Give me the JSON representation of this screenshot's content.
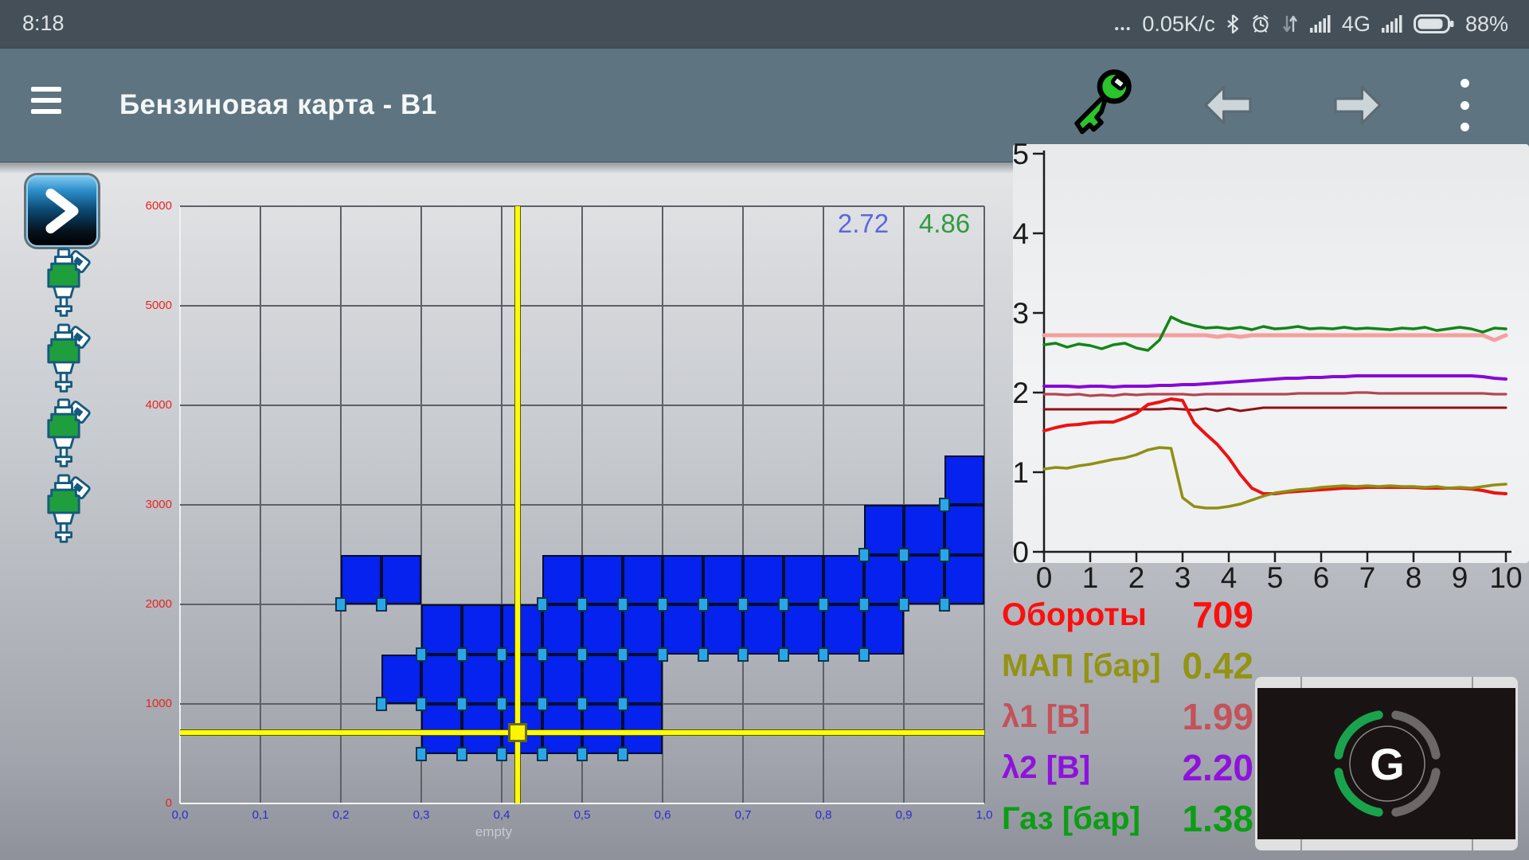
{
  "status_bar": {
    "time": "8:18",
    "ellipsis": "•••",
    "data_rate": "0.05K/c",
    "network_type": "4G",
    "battery_percent": "88%",
    "icons": [
      "bluetooth-icon",
      "alarm-icon",
      "data-arrows-icon",
      "signal-bars-icon",
      "signal-bars-icon",
      "battery-icon"
    ]
  },
  "toolbar": {
    "title": "Бензиновая карта - B1",
    "icons": [
      "hamburger-menu-icon",
      "key-icon",
      "arrow-left-icon",
      "arrow-right-icon",
      "overflow-menu-icon"
    ]
  },
  "sidebar": {
    "expand_button_glyph": "chevron-right",
    "injector_count": 4
  },
  "readouts": [
    {
      "label": "Обороты",
      "value": "709",
      "color": "#fb0f0f"
    },
    {
      "label": "МАП [бар]",
      "value": "0.42",
      "color": "#939314"
    },
    {
      "label": "λ1 [В]",
      "value": "1.99",
      "color": "#c4525a"
    },
    {
      "label": "λ2 [В]",
      "value": "2.20",
      "color": "#8e12dd"
    },
    {
      "label": "Газ [бар]",
      "value": "1.38",
      "color": "#0b9e14"
    }
  ],
  "gauge": {
    "letter": "G",
    "green": "#1aa34d",
    "gray": "#6b6867"
  },
  "chart_data": [
    {
      "type": "heatmap",
      "title": "Бензиновая карта - B1",
      "xlabel": "",
      "ylabel": "",
      "x_range": [
        0.0,
        1.0
      ],
      "x_cell": 0.05,
      "y_range": [
        0,
        6000
      ],
      "y_cell": 500,
      "x_tick_labels": [
        "0,0",
        "0,1",
        "0,2",
        "0,3",
        "0,4",
        "0,5",
        "0,6",
        "0,7",
        "0,8",
        "0,9",
        "1,0"
      ],
      "y_tick_labels": [
        "0",
        "1000",
        "2000",
        "3000",
        "4000",
        "5000",
        "6000"
      ],
      "empty_label": "empty",
      "corner_values": {
        "blue": "2.72",
        "green": "4.86"
      },
      "corner_value_colors": {
        "blue": "#5b68dd",
        "green": "#2f9b3f"
      },
      "active_cells": [
        {
          "rpm_low": 500,
          "x_starts": [
            0.3,
            0.35,
            0.4,
            0.45,
            0.5,
            0.55
          ]
        },
        {
          "rpm_low": 1000,
          "x_starts": [
            0.25,
            0.3,
            0.35,
            0.4,
            0.45,
            0.5,
            0.55
          ]
        },
        {
          "rpm_low": 1500,
          "x_starts": [
            0.3,
            0.35,
            0.4,
            0.45,
            0.5,
            0.55,
            0.6,
            0.65,
            0.7,
            0.75,
            0.8,
            0.85
          ]
        },
        {
          "rpm_low": 2000,
          "x_starts": [
            0.2,
            0.25,
            0.45,
            0.5,
            0.55,
            0.6,
            0.65,
            0.7,
            0.75,
            0.8,
            0.85,
            0.9,
            0.95
          ]
        },
        {
          "rpm_low": 2500,
          "x_starts": [
            0.85,
            0.9,
            0.95
          ]
        },
        {
          "rpm_low": 3000,
          "x_starts": [
            0.95
          ]
        }
      ],
      "cursor": {
        "x": 0.42,
        "rpm": 712
      },
      "cell_color": "#0522ee",
      "marker_color": "#2aa6e6",
      "crosshair_color": "#fdfc00",
      "x_label_color": "#2b2bd0",
      "y_label_color": "#e8241c"
    },
    {
      "type": "line",
      "title": "",
      "xlabel": "",
      "ylabel": "",
      "xlim": [
        0,
        10
      ],
      "ylim": [
        0,
        5
      ],
      "x_ticks": [
        "0",
        "1",
        "2",
        "3",
        "4",
        "5",
        "6",
        "7",
        "8",
        "9",
        "10"
      ],
      "y_ticks": [
        "0",
        "1",
        "2",
        "3",
        "4",
        "5"
      ],
      "x_step": 0.25,
      "grid": false,
      "legend": false,
      "series": [
        {
          "name": "salmon",
          "color": "#f59f9f",
          "width": 5,
          "values": [
            2.72,
            2.72,
            2.72,
            2.72,
            2.72,
            2.72,
            2.72,
            2.72,
            2.72,
            2.72,
            2.72,
            2.72,
            2.72,
            2.72,
            2.72,
            2.7,
            2.72,
            2.7,
            2.72,
            2.72,
            2.72,
            2.72,
            2.72,
            2.72,
            2.72,
            2.72,
            2.72,
            2.72,
            2.72,
            2.72,
            2.72,
            2.72,
            2.72,
            2.72,
            2.72,
            2.72,
            2.72,
            2.72,
            2.72,
            2.66,
            2.72
          ]
        },
        {
          "name": "crimson",
          "color": "#b24753",
          "width": 3.2,
          "values": [
            1.98,
            1.98,
            1.97,
            1.98,
            1.96,
            1.97,
            1.96,
            1.98,
            1.97,
            1.98,
            1.98,
            1.98,
            1.98,
            1.97,
            1.98,
            1.98,
            1.98,
            1.98,
            1.98,
            1.98,
            1.98,
            1.98,
            1.99,
            1.99,
            1.99,
            1.99,
            1.99,
            2.0,
            2.0,
            1.99,
            1.99,
            1.99,
            1.99,
            1.99,
            1.99,
            1.99,
            1.99,
            1.99,
            1.99,
            1.98,
            1.98
          ]
        },
        {
          "name": "dark-red",
          "color": "#8f1016",
          "width": 3,
          "values": [
            1.79,
            1.79,
            1.79,
            1.79,
            1.79,
            1.79,
            1.79,
            1.79,
            1.79,
            1.79,
            1.79,
            1.8,
            1.79,
            1.78,
            1.8,
            1.77,
            1.8,
            1.77,
            1.79,
            1.81,
            1.81,
            1.81,
            1.81,
            1.81,
            1.81,
            1.81,
            1.81,
            1.81,
            1.81,
            1.81,
            1.81,
            1.81,
            1.81,
            1.81,
            1.81,
            1.81,
            1.81,
            1.81,
            1.81,
            1.81,
            1.81
          ]
        },
        {
          "name": "green",
          "color": "#128517",
          "width": 3.5,
          "values": [
            2.6,
            2.62,
            2.57,
            2.61,
            2.59,
            2.55,
            2.6,
            2.62,
            2.56,
            2.53,
            2.66,
            2.95,
            2.88,
            2.84,
            2.81,
            2.82,
            2.8,
            2.82,
            2.79,
            2.83,
            2.8,
            2.81,
            2.83,
            2.8,
            2.81,
            2.8,
            2.82,
            2.8,
            2.81,
            2.8,
            2.79,
            2.81,
            2.8,
            2.82,
            2.78,
            2.8,
            2.82,
            2.8,
            2.76,
            2.81,
            2.8
          ]
        },
        {
          "name": "purple",
          "color": "#8806d6",
          "width": 4,
          "values": [
            2.08,
            2.08,
            2.08,
            2.07,
            2.08,
            2.08,
            2.07,
            2.08,
            2.08,
            2.08,
            2.09,
            2.09,
            2.1,
            2.1,
            2.11,
            2.12,
            2.13,
            2.14,
            2.15,
            2.16,
            2.17,
            2.18,
            2.18,
            2.19,
            2.19,
            2.2,
            2.2,
            2.21,
            2.21,
            2.21,
            2.21,
            2.21,
            2.21,
            2.21,
            2.21,
            2.21,
            2.21,
            2.21,
            2.2,
            2.18,
            2.17
          ]
        },
        {
          "name": "red",
          "color": "#ec1212",
          "width": 4,
          "values": [
            1.52,
            1.56,
            1.59,
            1.6,
            1.62,
            1.63,
            1.63,
            1.68,
            1.74,
            1.85,
            1.88,
            1.92,
            1.9,
            1.62,
            1.48,
            1.35,
            1.18,
            0.97,
            0.8,
            0.73,
            0.73,
            0.75,
            0.76,
            0.77,
            0.78,
            0.79,
            0.8,
            0.8,
            0.81,
            0.81,
            0.81,
            0.81,
            0.81,
            0.8,
            0.8,
            0.8,
            0.8,
            0.79,
            0.77,
            0.74,
            0.73
          ]
        },
        {
          "name": "olive",
          "color": "#8f8f12",
          "width": 3.5,
          "values": [
            1.04,
            1.06,
            1.05,
            1.08,
            1.1,
            1.13,
            1.16,
            1.18,
            1.22,
            1.28,
            1.31,
            1.3,
            0.68,
            0.57,
            0.55,
            0.55,
            0.57,
            0.6,
            0.65,
            0.7,
            0.74,
            0.76,
            0.78,
            0.79,
            0.81,
            0.82,
            0.83,
            0.82,
            0.83,
            0.82,
            0.83,
            0.82,
            0.82,
            0.81,
            0.82,
            0.8,
            0.81,
            0.8,
            0.82,
            0.84,
            0.85
          ]
        }
      ]
    }
  ]
}
